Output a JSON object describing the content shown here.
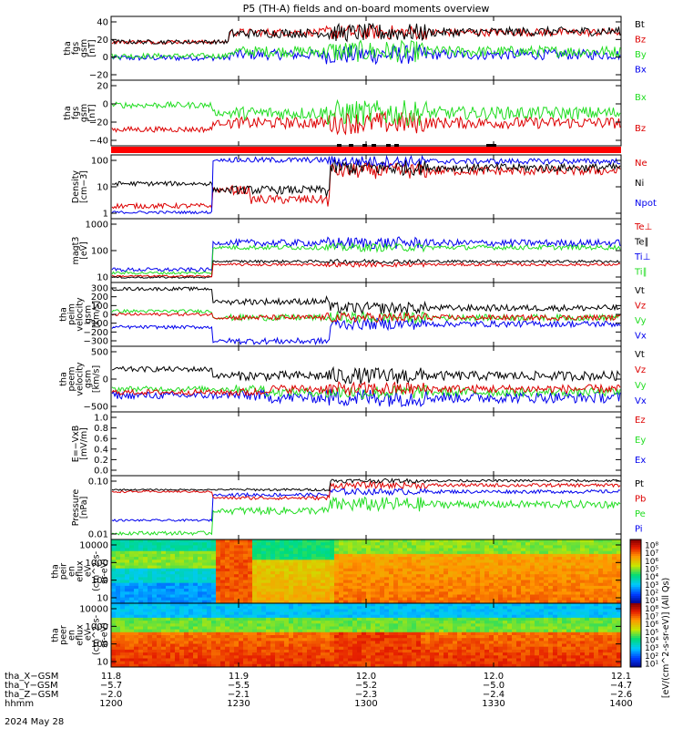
{
  "title": "P5 (TH-A) fields and on-board moments overview",
  "colors": {
    "black": "#000000",
    "red": "#dd0000",
    "green": "#22dd22",
    "blue": "#0000ee"
  },
  "chart_data": [
    {
      "type": "line",
      "ylabel": [
        "tha",
        "fgs",
        "gsm",
        "[nT]"
      ],
      "yticks": [
        "40",
        "20",
        "0",
        "−20"
      ],
      "ylim": [
        -30,
        55
      ],
      "series": [
        {
          "name": "Bt",
          "color": "black"
        },
        {
          "name": "Bz",
          "color": "red"
        },
        {
          "name": "By",
          "color": "green"
        },
        {
          "name": "Bx",
          "color": "blue"
        }
      ]
    },
    {
      "type": "line",
      "ylabel": [
        "tha",
        "fgs",
        "gsm",
        "[nT]"
      ],
      "yticks": [
        "20",
        "0",
        "−20",
        "−40"
      ],
      "ylim": [
        -55,
        25
      ],
      "series": [
        {
          "name": "Bx",
          "color": "green"
        },
        {
          "name": "Bz",
          "color": "red"
        }
      ]
    },
    {
      "type": "line",
      "scale": "log",
      "ylabel": [
        "Density",
        "[cm−3]"
      ],
      "yticks": [
        "100",
        "10",
        "1"
      ],
      "series": [
        {
          "name": "Ne",
          "color": "red"
        },
        {
          "name": "Ni",
          "color": "black"
        },
        {
          "name": "Npot",
          "color": "blue"
        }
      ]
    },
    {
      "type": "line",
      "scale": "log",
      "ylabel": [
        "magt3",
        "[eV]"
      ],
      "yticks": [
        "1000",
        "100",
        "10"
      ],
      "series": [
        {
          "name": "Te⊥",
          "color": "red"
        },
        {
          "name": "Te∥",
          "color": "black"
        },
        {
          "name": "Ti⊥",
          "color": "blue"
        },
        {
          "name": "Ti∥",
          "color": "green"
        }
      ]
    },
    {
      "type": "line",
      "ylabel": [
        "tha",
        "peim",
        "velocity",
        "gsm",
        "[km/s]"
      ],
      "yticks": [
        "300",
        "200",
        "100",
        "0",
        "−100",
        "−200",
        "−300"
      ],
      "ylim": [
        -320,
        320
      ],
      "series": [
        {
          "name": "Vt",
          "color": "black"
        },
        {
          "name": "Vz",
          "color": "red"
        },
        {
          "name": "Vy",
          "color": "green"
        },
        {
          "name": "Vx",
          "color": "blue"
        }
      ]
    },
    {
      "type": "line",
      "ylabel": [
        "tha",
        "peem",
        "velocity",
        "gsm",
        "[km/s]"
      ],
      "yticks": [
        "500",
        "0",
        "−500"
      ],
      "ylim": [
        -650,
        850
      ],
      "series": [
        {
          "name": "Vt",
          "color": "black"
        },
        {
          "name": "Vz",
          "color": "red"
        },
        {
          "name": "Vy",
          "color": "green"
        },
        {
          "name": "Vx",
          "color": "blue"
        }
      ]
    },
    {
      "type": "line",
      "ylabel": [
        "E=−VxB",
        "[mV/m]"
      ],
      "yticks": [
        "1.0",
        "0.8",
        "0.6",
        "0.4",
        "0.2",
        "0.0"
      ],
      "ylim": [
        0,
        1
      ],
      "series": [
        {
          "name": "Ez",
          "color": "red"
        },
        {
          "name": "Ey",
          "color": "green"
        },
        {
          "name": "Ex",
          "color": "blue"
        }
      ]
    },
    {
      "type": "line",
      "scale": "log",
      "ylabel": [
        "Pressure",
        "[nPa]"
      ],
      "yticks": [
        "0.10",
        "0.01"
      ],
      "series": [
        {
          "name": "Pt",
          "color": "black"
        },
        {
          "name": "Pb",
          "color": "red"
        },
        {
          "name": "Pe",
          "color": "green"
        },
        {
          "name": "Pi",
          "color": "blue"
        }
      ]
    },
    {
      "type": "heatmap",
      "ylabel": [
        "tha",
        "peir",
        "en",
        "eflux",
        "eV",
        "(cm^2-s-",
        "sr-eV)"
      ],
      "yticks": [
        "10000",
        "1000",
        "100",
        "10"
      ]
    },
    {
      "type": "heatmap",
      "ylabel": [
        "tha",
        "peer",
        "en",
        "eflux",
        "eV",
        "(cm^2-s-",
        "sr-eV)"
      ],
      "yticks": [
        "10000",
        "1000",
        "100",
        "10"
      ]
    }
  ],
  "colorbar": {
    "label": "[eV/(cm^2-s-sr-eV)] (All Qs)",
    "ticks": [
      "10⁸",
      "10⁷",
      "10⁶",
      "10⁵",
      "10⁴",
      "10³",
      "10²",
      "10¹",
      "10⁸",
      "10⁷",
      "10⁶",
      "10⁵",
      "10⁴",
      "10³",
      "10²",
      "10¹"
    ]
  },
  "xaxis": {
    "rows": [
      {
        "label": "tha_X−GSM",
        "values": [
          "11.8",
          "11.9",
          "12.0",
          "12.0",
          "12.1"
        ]
      },
      {
        "label": "tha_Y−GSM",
        "values": [
          "−5.7",
          "−5.5",
          "−5.2",
          "−5.0",
          "−4.7"
        ]
      },
      {
        "label": "tha_Z−GSM",
        "values": [
          "−2.0",
          "−2.1",
          "−2.3",
          "−2.4",
          "−2.6"
        ]
      },
      {
        "label": "hhmm",
        "values": [
          "1200",
          "1230",
          "1300",
          "1330",
          "1400"
        ]
      }
    ],
    "date": "2024 May 28"
  }
}
